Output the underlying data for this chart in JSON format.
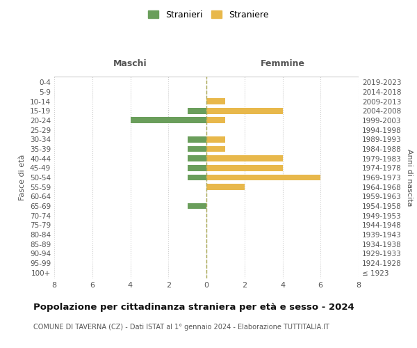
{
  "age_groups": [
    "100+",
    "95-99",
    "90-94",
    "85-89",
    "80-84",
    "75-79",
    "70-74",
    "65-69",
    "60-64",
    "55-59",
    "50-54",
    "45-49",
    "40-44",
    "35-39",
    "30-34",
    "25-29",
    "20-24",
    "15-19",
    "10-14",
    "5-9",
    "0-4"
  ],
  "birth_years": [
    "≤ 1923",
    "1924-1928",
    "1929-1933",
    "1934-1938",
    "1939-1943",
    "1944-1948",
    "1949-1953",
    "1954-1958",
    "1959-1963",
    "1964-1968",
    "1969-1973",
    "1974-1978",
    "1979-1983",
    "1984-1988",
    "1989-1993",
    "1994-1998",
    "1999-2003",
    "2004-2008",
    "2009-2013",
    "2014-2018",
    "2019-2023"
  ],
  "maschi": [
    0,
    0,
    0,
    0,
    0,
    0,
    0,
    1,
    0,
    0,
    1,
    1,
    1,
    1,
    1,
    0,
    4,
    1,
    0,
    0,
    0
  ],
  "femmine": [
    0,
    0,
    0,
    0,
    0,
    0,
    0,
    0,
    0,
    2,
    6,
    4,
    4,
    1,
    1,
    0,
    1,
    4,
    1,
    0,
    0
  ],
  "color_maschi": "#6a9e5b",
  "color_femmine": "#e8b84b",
  "xlim": 8,
  "title": "Popolazione per cittadinanza straniera per età e sesso - 2024",
  "subtitle": "COMUNE DI TAVERNA (CZ) - Dati ISTAT al 1° gennaio 2024 - Elaborazione TUTTITALIA.IT",
  "ylabel_left": "Fasce di età",
  "ylabel_right": "Anni di nascita",
  "label_maschi": "Stranieri",
  "label_femmine": "Straniere",
  "header_maschi": "Maschi",
  "header_femmine": "Femmine",
  "background_color": "#ffffff",
  "grid_color": "#cccccc"
}
